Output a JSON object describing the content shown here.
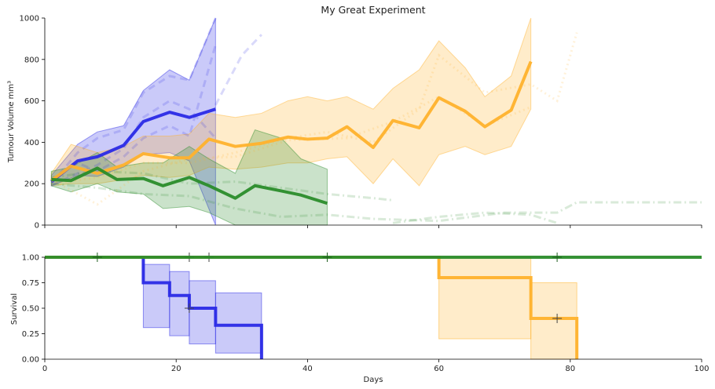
{
  "chart_data": [
    {
      "type": "line",
      "title": "My Great Experiment",
      "xlabel": "",
      "ylabel": "Tumour Volume mm³",
      "xlim": [
        0,
        100
      ],
      "ylim": [
        0,
        1000
      ],
      "yticks": [
        "0",
        "200",
        "400",
        "600",
        "800",
        "1000"
      ],
      "grid": false,
      "series": [
        {
          "color": "#2a2ae6",
          "x": [
            1,
            5,
            8,
            12,
            15,
            19,
            22,
            26
          ],
          "y": [
            210,
            310,
            330,
            385,
            500,
            545,
            520,
            560
          ],
          "band_low": [
            190,
            240,
            235,
            280,
            340,
            350,
            310,
            0
          ],
          "band_high": [
            240,
            390,
            450,
            480,
            650,
            750,
            700,
            1000
          ],
          "individual": [
            {
              "x": [
                1,
                5,
                8,
                12,
                15,
                19,
                22,
                26
              ],
              "y": [
                200,
                350,
                420,
                460,
                640,
                720,
                700,
                1000
              ]
            },
            {
              "x": [
                1,
                5,
                8,
                12,
                15,
                19,
                22,
                26
              ],
              "y": [
                220,
                300,
                260,
                330,
                420,
                480,
                430,
                870
              ]
            },
            {
              "x": [
                1,
                5,
                8,
                12,
                15,
                19,
                22,
                26
              ],
              "y": [
                190,
                250,
                290,
                370,
                520,
                600,
                560,
                420
              ]
            },
            {
              "x": [
                26,
                28,
                30,
                33
              ],
              "y": [
                580,
                700,
                820,
                920
              ]
            }
          ]
        },
        {
          "color": "#ffb22c",
          "x": [
            1,
            4,
            8,
            12,
            15,
            19,
            22,
            25,
            29,
            33,
            37,
            40,
            43,
            46,
            50,
            53,
            57,
            60,
            64,
            67,
            71,
            74
          ],
          "y": [
            215,
            285,
            250,
            290,
            345,
            325,
            325,
            415,
            380,
            395,
            425,
            415,
            420,
            475,
            375,
            505,
            470,
            615,
            550,
            475,
            555,
            790
          ],
          "band_low": [
            190,
            200,
            200,
            220,
            240,
            230,
            240,
            280,
            270,
            280,
            300,
            300,
            320,
            330,
            200,
            320,
            190,
            340,
            380,
            340,
            380,
            560
          ],
          "band_high": [
            250,
            390,
            350,
            380,
            430,
            430,
            440,
            540,
            520,
            540,
            600,
            620,
            600,
            620,
            560,
            660,
            750,
            890,
            760,
            620,
            720,
            1000
          ],
          "individual": [
            {
              "x": [
                1,
                8,
                15,
                22,
                29,
                37,
                43,
                50,
                57,
                60,
                67,
                74,
                78,
                81
              ],
              "y": [
                200,
                230,
                300,
                300,
                350,
                420,
                450,
                400,
                560,
                820,
                640,
                680,
                600,
                930
              ]
            },
            {
              "x": [
                1,
                8,
                15,
                22,
                29,
                37,
                46,
                53,
                60,
                67,
                74
              ],
              "y": [
                220,
                100,
                260,
                320,
                330,
                410,
                420,
                500,
                620,
                480,
                570
              ]
            }
          ]
        },
        {
          "color": "#2a8c2a",
          "x": [
            1,
            4,
            8,
            11,
            15,
            18,
            22,
            25,
            29,
            32,
            36,
            39,
            43
          ],
          "y": [
            220,
            215,
            275,
            220,
            225,
            190,
            230,
            190,
            130,
            190,
            165,
            145,
            105
          ],
          "band_low": [
            190,
            160,
            200,
            160,
            150,
            80,
            90,
            60,
            0,
            0,
            0,
            0,
            0
          ],
          "band_high": [
            260,
            280,
            350,
            280,
            300,
            300,
            380,
            320,
            250,
            460,
            420,
            320,
            270
          ],
          "individual": [
            {
              "x": [
                1,
                8,
                15,
                22,
                29,
                36,
                43,
                50,
                60,
                70,
                78,
                81,
                100
              ],
              "y": [
                200,
                180,
                150,
                140,
                80,
                40,
                50,
                30,
                20,
                60,
                60,
                110,
                110
              ]
            },
            {
              "x": [
                1,
                8,
                15,
                22,
                29,
                36,
                43,
                50,
                53
              ],
              "y": [
                230,
                260,
                250,
                200,
                210,
                180,
                150,
                130,
                120
              ]
            },
            {
              "x": [
                53,
                60,
                67,
                74,
                78
              ],
              "y": [
                10,
                40,
                60,
                50,
                10
              ]
            }
          ]
        }
      ]
    },
    {
      "type": "line",
      "title": "",
      "xlabel": "Days",
      "ylabel": "Survival",
      "xlim": [
        0,
        100
      ],
      "ylim": [
        0.0,
        1.0
      ],
      "xticks": [
        "0",
        "20",
        "40",
        "60",
        "80",
        "100"
      ],
      "yticks": [
        "0.00",
        "0.25",
        "0.50",
        "0.75",
        "1.00"
      ],
      "grid": false,
      "series": [
        {
          "color": "#2a8c2a",
          "x": [
            0,
            100
          ],
          "y": [
            1.0,
            1.0
          ],
          "censor_x": [
            8,
            43,
            78
          ],
          "censor_y": [
            1.0,
            1.0,
            1.0
          ]
        },
        {
          "color": "#2a2ae6",
          "x": [
            0,
            15,
            15,
            19,
            19,
            22,
            22,
            26,
            26,
            33,
            33
          ],
          "y": [
            1.0,
            1.0,
            0.75,
            0.75,
            0.625,
            0.625,
            0.5,
            0.5,
            0.333,
            0.333,
            0.0
          ],
          "band_x": [
            15,
            19,
            19,
            22,
            22,
            26,
            26,
            33
          ],
          "band_low": [
            0.31,
            0.31,
            0.23,
            0.23,
            0.15,
            0.15,
            0.06,
            0.06
          ],
          "band_high": [
            0.93,
            0.93,
            0.86,
            0.86,
            0.77,
            0.77,
            0.65,
            0.65
          ],
          "censor_x": [
            22
          ],
          "censor_y": [
            0.5
          ]
        },
        {
          "color": "#ffb22c",
          "x": [
            0,
            60,
            60,
            74,
            74,
            81,
            81
          ],
          "y": [
            1.0,
            1.0,
            0.8,
            0.8,
            0.4,
            0.4,
            0.0
          ],
          "band_x": [
            60,
            74,
            74,
            81
          ],
          "band_low": [
            0.2,
            0.2,
            0.0,
            0.0
          ],
          "band_high": [
            1.0,
            0.97,
            0.75,
            0.75
          ],
          "censor_x": [
            22,
            25,
            78
          ],
          "censor_y": [
            1.0,
            1.0,
            0.4
          ]
        }
      ]
    }
  ]
}
